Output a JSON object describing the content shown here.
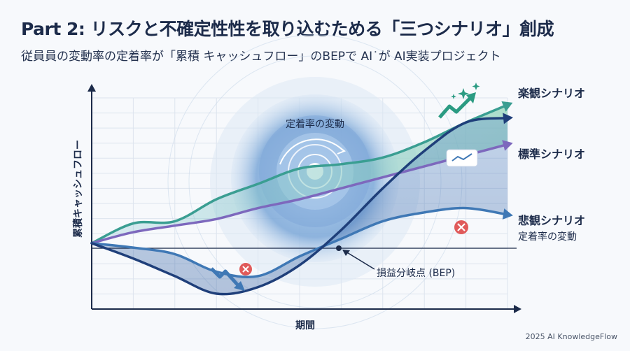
{
  "header": {
    "title": "Part 2: リスクと不確定性性を取り込むためる「三つシナリオ」創成",
    "subtitle": "従員員の変動率の定着率が「累積 キャッシュフロー」のBEPで AI˙が AI実装プロジェクト"
  },
  "credit": "2025 AI KnowledgeFlow",
  "colors": {
    "optimistic": "#3a9e92",
    "standard": "#7d68bd",
    "pessimistic": "#3f78b5",
    "dip": "#1f3f7a",
    "axis": "#1c2b4a",
    "warning": "#e05a5a"
  },
  "chart_data": {
    "type": "line",
    "xlabel": "期間",
    "ylabel": "累積キャッシュフロー",
    "series": [
      {
        "name": "楽観シナリオ",
        "x": [
          0,
          1,
          2,
          3,
          4,
          5,
          6,
          7,
          8,
          9,
          10
        ],
        "y": [
          0,
          0.9,
          1.0,
          2.0,
          2.7,
          3.4,
          3.6,
          3.9,
          4.6,
          5.5,
          6.3
        ]
      },
      {
        "name": "標準シナリオ",
        "x": [
          0,
          1,
          2,
          3,
          4,
          5,
          6,
          7,
          8,
          9,
          10
        ],
        "y": [
          0,
          0.5,
          0.8,
          1.1,
          1.6,
          2.0,
          2.5,
          3.0,
          3.5,
          4.0,
          4.5
        ]
      },
      {
        "name": "悲観シナリオ",
        "x": [
          0,
          1,
          2,
          3,
          4,
          5,
          6,
          7,
          8,
          9,
          10
        ],
        "y": [
          0,
          -0.2,
          -0.5,
          -1.3,
          -1.5,
          -0.6,
          0.2,
          1.0,
          1.4,
          1.6,
          1.3
        ]
      },
      {
        "name": "",
        "x": [
          0,
          1,
          2,
          3,
          4,
          5,
          6,
          7,
          8,
          9,
          10
        ],
        "y": [
          0,
          -0.7,
          -1.5,
          -2.3,
          -2.0,
          -1.0,
          0.6,
          2.5,
          4.2,
          5.5,
          5.7
        ]
      }
    ],
    "annotations": {
      "center_label": "定着率の変動",
      "pessimistic_sub": "定着率の変動",
      "bep_label": "損益分岐点 (BEP)"
    },
    "xlim": [
      0,
      10
    ],
    "ylim": [
      -3,
      7
    ],
    "grid": true,
    "legend": "right"
  }
}
